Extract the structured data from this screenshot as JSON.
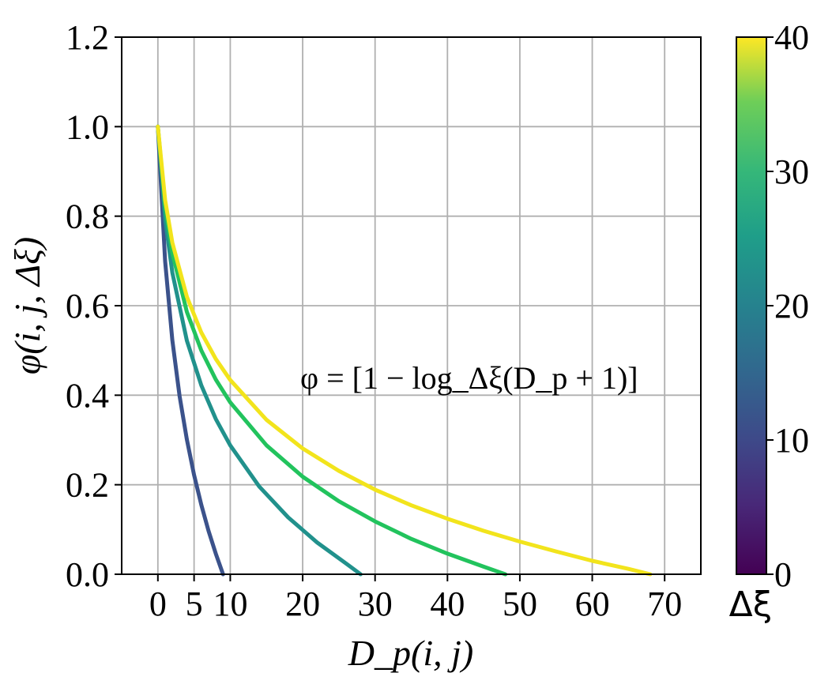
{
  "chart_data": {
    "type": "line",
    "xlabel": "D_p(i, j)",
    "ylabel": "φ(i, j, Δξ)",
    "xlim": [
      -5,
      75
    ],
    "ylim": [
      0.0,
      1.2
    ],
    "x_ticks": [
      "0",
      "5",
      "10",
      "20",
      "30",
      "40",
      "50",
      "60",
      "70"
    ],
    "y_ticks": [
      "0.0",
      "0.2",
      "0.4",
      "0.6",
      "0.8",
      "1.0",
      "1.2"
    ],
    "grid": true,
    "annotation": "φ = [1 − log_Δξ(D_p + 1)]",
    "colorbar": {
      "label": "Δξ",
      "range": [
        0,
        40
      ],
      "ticks": [
        "0",
        "10",
        "20",
        "30",
        "40"
      ],
      "colormap": "viridis"
    },
    "series": [
      {
        "delta_xi": 10,
        "color": "#3b528b",
        "x": [
          0,
          1,
          2,
          3,
          4,
          5,
          6,
          7,
          8,
          9
        ],
        "y": [
          1.0,
          0.699,
          0.523,
          0.398,
          0.301,
          0.222,
          0.155,
          0.097,
          0.046,
          0.0
        ]
      },
      {
        "delta_xi": 29,
        "color": "#21918c",
        "x": [
          0,
          1,
          2,
          4,
          6,
          8,
          10,
          14,
          18,
          22,
          26,
          28
        ],
        "y": [
          1.0,
          0.794,
          0.674,
          0.522,
          0.422,
          0.347,
          0.288,
          0.196,
          0.127,
          0.071,
          0.024,
          0.0
        ]
      },
      {
        "delta_xi": 49,
        "color": "#22c35d",
        "x": [
          0,
          1,
          2,
          4,
          6,
          8,
          10,
          15,
          20,
          25,
          30,
          35,
          40,
          45,
          48
        ],
        "y": [
          1.0,
          0.822,
          0.718,
          0.586,
          0.5,
          0.435,
          0.384,
          0.288,
          0.218,
          0.163,
          0.118,
          0.079,
          0.046,
          0.017,
          0.0
        ]
      },
      {
        "delta_xi": 69,
        "color": "#f2e41c",
        "x": [
          0,
          1,
          2,
          4,
          6,
          8,
          10,
          15,
          20,
          25,
          30,
          35,
          40,
          45,
          50,
          55,
          60,
          65,
          68
        ],
        "y": [
          1.0,
          0.836,
          0.741,
          0.62,
          0.54,
          0.481,
          0.434,
          0.345,
          0.281,
          0.231,
          0.189,
          0.154,
          0.124,
          0.097,
          0.073,
          0.051,
          0.03,
          0.012,
          0.0
        ]
      }
    ]
  }
}
